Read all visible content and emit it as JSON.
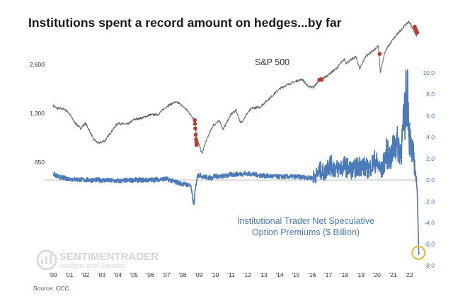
{
  "title": "Institutions spent a record amount on hedges...by far",
  "source": "Source: OCC",
  "watermark": {
    "name": "SENTIMENTRADER",
    "tagline": "Analysis over Emotion"
  },
  "colors": {
    "spx_line": "#6b6b6b",
    "premium_line": "#4a7ab8",
    "hedge_marker": "#c0392b",
    "highlight_circle": "#f2b233",
    "zero_line": "#bdbdbd"
  },
  "chart_data": {
    "type": "line",
    "x_ticks": [
      "'00",
      "'01",
      "'02",
      "'03",
      "'04",
      "'05",
      "'06",
      "'07",
      "'08",
      "'09",
      "'10",
      "'11",
      "'12",
      "'13",
      "'14",
      "'15",
      "'16",
      "'17",
      "'18",
      "'19",
      "'20",
      "'21",
      "'22"
    ],
    "left_axis": {
      "scale": "log",
      "ticks": [
        "2,600",
        "1,300",
        "650"
      ],
      "tick_values": [
        2600,
        1300,
        650
      ]
    },
    "right_axis": {
      "ticks": [
        "10.0",
        "8.0",
        "6.0",
        "4.0",
        "2.0",
        "0.0",
        "-2.0",
        "-4.0",
        "-6.0",
        "-8.0"
      ],
      "tick_values": [
        10,
        8,
        6,
        4,
        2,
        0,
        -2,
        -4,
        -6,
        -8
      ],
      "ylim": [
        -8,
        10
      ]
    },
    "series": [
      {
        "name": "S&P 500",
        "axis": "left",
        "x": [
          2000.0,
          2000.2,
          2000.7,
          2001.0,
          2001.3,
          2001.7,
          2002.0,
          2002.5,
          2002.8,
          2003.2,
          2003.6,
          2004.0,
          2004.6,
          2005.0,
          2005.5,
          2006.0,
          2006.5,
          2007.0,
          2007.5,
          2007.8,
          2008.3,
          2008.7,
          2008.9,
          2009.2,
          2009.5,
          2009.9,
          2010.3,
          2010.5,
          2011.0,
          2011.3,
          2011.6,
          2012.0,
          2012.3,
          2012.8,
          2013.0,
          2013.5,
          2014.0,
          2014.5,
          2015.0,
          2015.4,
          2015.7,
          2016.1,
          2016.5,
          2016.9,
          2017.5,
          2018.0,
          2018.1,
          2018.7,
          2018.95,
          2019.3,
          2019.9,
          2020.1,
          2020.22,
          2020.5,
          2021.0,
          2021.5,
          2021.99,
          2022.2,
          2022.45,
          2022.5
        ],
        "y": [
          1450,
          1400,
          1380,
          1300,
          1150,
          1050,
          1130,
          900,
          850,
          880,
          1000,
          1130,
          1110,
          1190,
          1220,
          1270,
          1280,
          1430,
          1520,
          1500,
          1350,
          1200,
          900,
          730,
          900,
          1100,
          1170,
          1030,
          1280,
          1360,
          1120,
          1300,
          1400,
          1420,
          1490,
          1650,
          1840,
          1960,
          2050,
          2110,
          1920,
          1880,
          2100,
          2200,
          2450,
          2800,
          2650,
          2900,
          2450,
          2900,
          3230,
          3380,
          2300,
          3100,
          3700,
          4250,
          4780,
          4380,
          3900,
          4100
        ]
      },
      {
        "name": "Institutional Trader Net Speculative Option Premiums ($ Billion)",
        "axis": "right",
        "x": [
          2000.0,
          2000.3,
          2000.6,
          2001.0,
          2002.0,
          2003.0,
          2004.0,
          2005.0,
          2006.0,
          2007.0,
          2007.8,
          2008.5,
          2008.7,
          2008.8,
          2008.9,
          2009.0,
          2009.3,
          2009.8,
          2010.0,
          2010.3,
          2011.0,
          2012.0,
          2013.0,
          2014.0,
          2015.0,
          2016.0,
          2016.3,
          2016.5,
          2016.8,
          2017.0,
          2017.5,
          2018.0,
          2018.5,
          2019.0,
          2019.5,
          2019.9,
          2020.1,
          2020.3,
          2020.6,
          2020.9,
          2021.0,
          2021.2,
          2021.5,
          2021.7,
          2021.9,
          2022.0,
          2022.1,
          2022.3,
          2022.4,
          2022.5,
          2022.55,
          2022.6
        ],
        "y": [
          0.6,
          0.3,
          0.2,
          0.1,
          0.0,
          0.0,
          -0.1,
          0.0,
          0.0,
          0.1,
          -0.3,
          -0.5,
          -2.4,
          -0.8,
          0.3,
          0.5,
          0.3,
          0.2,
          0.4,
          0.3,
          0.5,
          0.6,
          0.4,
          0.3,
          0.3,
          0.2,
          0.5,
          0.9,
          0.6,
          1.5,
          1.0,
          1.3,
          0.9,
          1.4,
          1.0,
          1.8,
          1.3,
          0.8,
          2.5,
          2.0,
          2.9,
          3.5,
          2.8,
          5.5,
          9.1,
          4.5,
          3.0,
          2.0,
          0.5,
          -1.0,
          -4.0,
          -7.0
        ]
      }
    ],
    "annotations": [
      {
        "text": "S&P 500"
      },
      {
        "text": "Institutional Trader Net Speculative Option Premiums ($ Billion)",
        "lines": [
          "Institutional Trader Net Speculative",
          "Option Premiums ($ Billion)"
        ]
      }
    ],
    "hedge_markers": {
      "x": [
        2008.75,
        2008.77,
        2008.79,
        2008.81,
        2008.83,
        2008.85,
        2008.87,
        2016.45,
        2016.5,
        2016.55,
        2016.6,
        2020.18,
        2022.35,
        2022.4,
        2022.45,
        2022.5
      ],
      "y": [
        1180,
        1120,
        1050,
        960,
        900,
        860,
        830,
        2090,
        2100,
        2110,
        2090,
        3020,
        4440,
        4300,
        4180,
        4080
      ]
    },
    "highlight": {
      "x": 2022.58,
      "y": -6.8
    },
    "grid": false
  }
}
